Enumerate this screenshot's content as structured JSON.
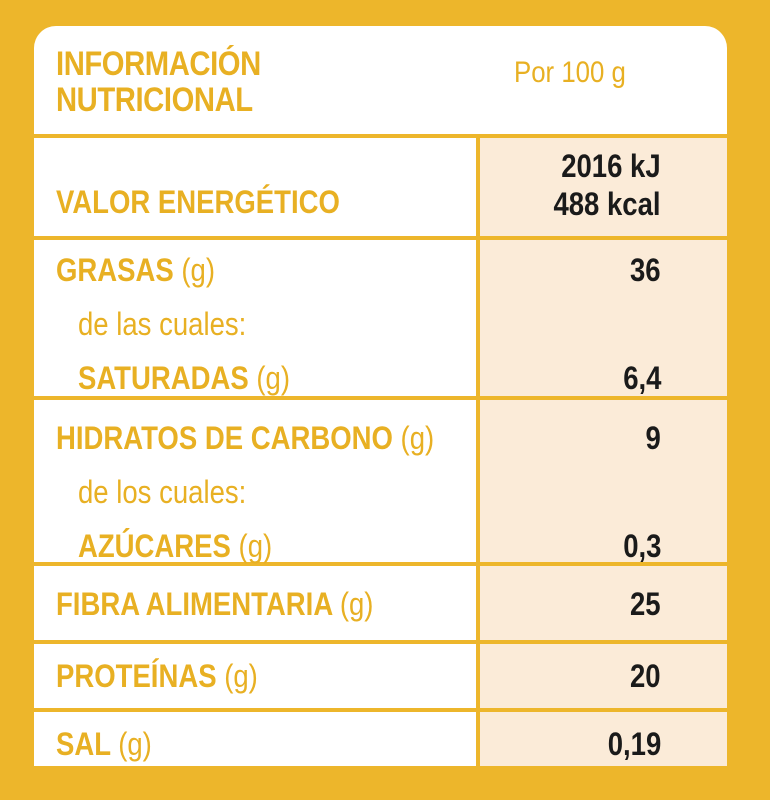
{
  "header": {
    "title_line1": "INFORMACIÓN",
    "title_line2": "NUTRICIONAL",
    "per_label": "Por 100 g"
  },
  "rows": {
    "energia": {
      "label": "VALOR ENERGÉTICO",
      "value_kj": "2016 kJ",
      "value_kcal": "488 kcal"
    },
    "grasas": {
      "label": "GRASAS",
      "unit": "(g)",
      "value": "36",
      "sub_intro": "de las cuales:",
      "sub_label": "SATURADAS",
      "sub_unit": "(g)",
      "sub_value": "6,4"
    },
    "hidratos": {
      "label": "HIDRATOS DE CARBONO",
      "unit": "(g)",
      "value": "9",
      "sub_intro": "de los cuales:",
      "sub_label": "AZÚCARES",
      "sub_unit": "(g)",
      "sub_value": "0,3"
    },
    "fibra": {
      "label": "FIBRA ALIMENTARIA",
      "unit": "(g)",
      "value": "25"
    },
    "proteinas": {
      "label": "PROTEÍNAS",
      "unit": "(g)",
      "value": "20"
    },
    "sal": {
      "label": "SAL",
      "unit": "(g)",
      "value": "0,19"
    }
  },
  "colors": {
    "border": "#EDB62B",
    "label_text": "#E8B023",
    "value_background": "#FBEBD8",
    "value_text": "#1A1A1A"
  }
}
